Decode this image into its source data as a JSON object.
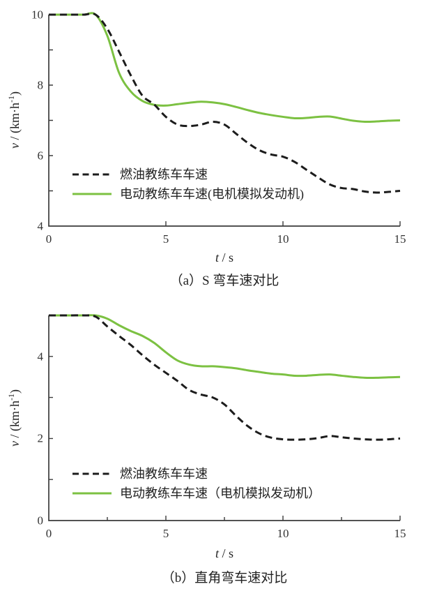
{
  "figure_background": "#ffffff",
  "axis_color": "#3b3b3b",
  "chart_data": [
    {
      "type": "line",
      "caption": "（a）S 弯车速对比",
      "xlabel": "t / s",
      "ylabel": "v / (km·h⁻¹)",
      "xlabel_parts": {
        "symbol": "t",
        "rest": " / s"
      },
      "ylabel_parts": {
        "symbol": "v",
        "pre": " / (km·h",
        "sup": "-1",
        "post": ")"
      },
      "xlim": [
        0,
        15
      ],
      "ylim": [
        4,
        10
      ],
      "grid": false,
      "legend_position": "inside-lower-left",
      "x_tick_labels": [
        {
          "value": 0,
          "text": "0"
        },
        {
          "value": 5,
          "text": "5"
        },
        {
          "value": 10,
          "text": "10"
        },
        {
          "value": 15,
          "text": "15"
        }
      ],
      "y_tick_labels": [
        {
          "value": 4,
          "text": "4"
        },
        {
          "value": 6,
          "text": "6"
        },
        {
          "value": 8,
          "text": "8"
        },
        {
          "value": 10,
          "text": "10"
        }
      ],
      "x_major_ticks": [
        5,
        10,
        15
      ],
      "x_minor_ticks": [],
      "y_ticks": [
        5,
        6,
        7,
        8,
        9
      ],
      "x": [
        0,
        0.5,
        1,
        1.5,
        2,
        2.5,
        3,
        3.5,
        4,
        4.5,
        5,
        5.5,
        6,
        6.5,
        7,
        7.5,
        8,
        8.5,
        9,
        9.5,
        10,
        10.5,
        11,
        11.5,
        12,
        12.5,
        13,
        13.5,
        14,
        14.5,
        15
      ],
      "series": [
        {
          "name": "燃油教练车车速",
          "style": "dashed",
          "color": "#1c1c1c",
          "values": [
            10,
            10,
            10,
            10,
            10,
            9.6,
            8.95,
            8.28,
            7.7,
            7.45,
            7.1,
            6.88,
            6.84,
            6.88,
            6.96,
            6.88,
            6.62,
            6.36,
            6.15,
            6.03,
            5.97,
            5.82,
            5.6,
            5.38,
            5.18,
            5.08,
            5.05,
            4.98,
            4.95,
            4.97,
            5.0
          ]
        },
        {
          "name": "电动教练车车速(电机模拟发动机)",
          "style": "solid",
          "color": "#7cc142",
          "values": [
            10,
            10,
            10,
            10,
            10,
            9.4,
            8.35,
            7.82,
            7.55,
            7.44,
            7.42,
            7.46,
            7.5,
            7.53,
            7.51,
            7.46,
            7.38,
            7.29,
            7.21,
            7.15,
            7.1,
            7.06,
            7.07,
            7.1,
            7.11,
            7.05,
            6.99,
            6.96,
            6.97,
            6.99,
            7.0
          ]
        }
      ]
    },
    {
      "type": "line",
      "caption": "（b）直角弯车速对比",
      "xlabel": "t / s",
      "ylabel": "v / (km·h⁻¹)",
      "xlabel_parts": {
        "symbol": "t",
        "rest": " / s"
      },
      "ylabel_parts": {
        "symbol": "v",
        "pre": " / (km·h",
        "sup": "-1",
        "post": ")"
      },
      "xlim": [
        0,
        15
      ],
      "ylim": [
        0,
        5
      ],
      "grid": false,
      "legend_position": "inside-lower-left",
      "x_tick_labels": [
        {
          "value": 0,
          "text": "0"
        },
        {
          "value": 5,
          "text": "5"
        },
        {
          "value": 10,
          "text": "10"
        },
        {
          "value": 15,
          "text": "15"
        }
      ],
      "y_tick_labels": [
        {
          "value": 0,
          "text": "0"
        },
        {
          "value": 2,
          "text": "2"
        },
        {
          "value": 4,
          "text": "4"
        }
      ],
      "x_major_ticks": [
        5,
        10,
        15
      ],
      "x_minor_ticks": [
        2.5,
        7.5,
        12.5
      ],
      "y_ticks": [
        1,
        2,
        3,
        4
      ],
      "x": [
        0,
        0.5,
        1,
        1.5,
        2,
        2.5,
        3,
        3.5,
        4,
        4.5,
        5,
        5.5,
        6,
        6.5,
        7,
        7.5,
        8,
        8.5,
        9,
        9.5,
        10,
        10.5,
        11,
        11.5,
        12,
        12.5,
        13,
        13.5,
        14,
        14.5,
        15
      ],
      "series": [
        {
          "name": "燃油教练车车速",
          "style": "dashed",
          "color": "#1c1c1c",
          "values": [
            5,
            5,
            5,
            5,
            4.97,
            4.73,
            4.5,
            4.28,
            4.03,
            3.8,
            3.6,
            3.4,
            3.18,
            3.07,
            3.0,
            2.83,
            2.55,
            2.3,
            2.12,
            2.02,
            1.98,
            1.97,
            1.98,
            2.01,
            2.06,
            2.03,
            2.0,
            1.98,
            1.97,
            1.98,
            2.0
          ]
        },
        {
          "name": "电动教练车车速（电机模拟发动机）",
          "style": "solid",
          "color": "#7cc142",
          "values": [
            5,
            5,
            5,
            5,
            5,
            4.92,
            4.76,
            4.62,
            4.5,
            4.33,
            4.1,
            3.9,
            3.8,
            3.76,
            3.76,
            3.74,
            3.71,
            3.66,
            3.62,
            3.58,
            3.56,
            3.53,
            3.53,
            3.55,
            3.56,
            3.53,
            3.5,
            3.48,
            3.48,
            3.49,
            3.5
          ]
        }
      ]
    }
  ]
}
